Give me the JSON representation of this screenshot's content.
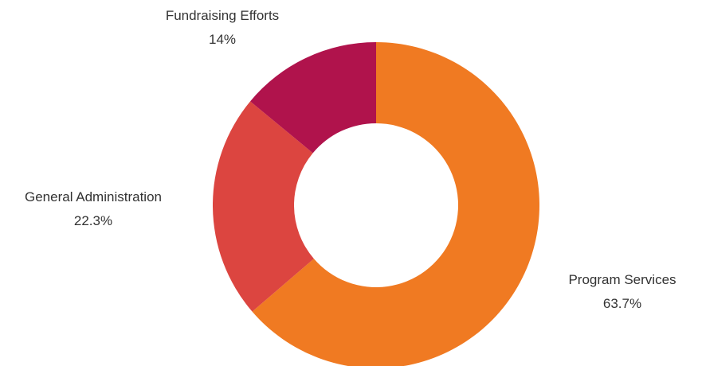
{
  "chart_data": {
    "type": "pie",
    "variant": "donut",
    "title": "",
    "legend": "none",
    "slices": [
      {
        "name": "Program Services",
        "value": 63.7,
        "label": "63.7%",
        "color": "#f07a22"
      },
      {
        "name": "General Administration",
        "value": 22.3,
        "label": "22.3%",
        "color": "#dc4540"
      },
      {
        "name": "Fundraising Efforts",
        "value": 14,
        "label": "14%",
        "color": "#b0134c"
      }
    ]
  }
}
